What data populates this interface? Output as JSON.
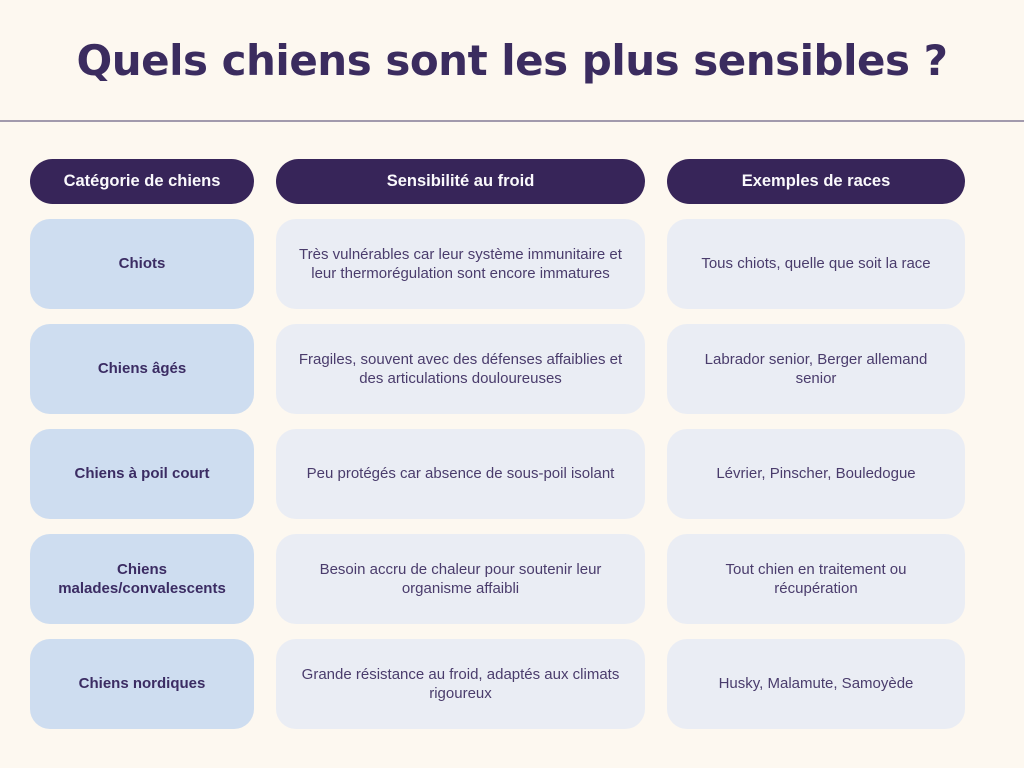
{
  "page": {
    "title": "Quels chiens sont les plus sensibles ?"
  },
  "table": {
    "headers": {
      "categorie": "Catégorie de chiens",
      "sensibilite": "Sensibilité au froid",
      "exemples": "Exemples de races"
    },
    "rows": [
      {
        "categorie": "Chiots",
        "sensibilite": "Très vulnérables car leur système immunitaire et leur thermorégulation sont encore immatures",
        "exemples": "Tous chiots, quelle que soit la race"
      },
      {
        "categorie": "Chiens âgés",
        "sensibilite": "Fragiles, souvent avec des défenses affaiblies et des articulations douloureuses",
        "exemples": "Labrador senior, Berger allemand senior"
      },
      {
        "categorie": "Chiens à poil court",
        "sensibilite": "Peu protégés car absence de sous-poil isolant",
        "exemples": "Lévrier, Pinscher, Bouledogue"
      },
      {
        "categorie": "Chiens malades/convalescents",
        "sensibilite": "Besoin accru de chaleur pour soutenir leur organisme affaibli",
        "exemples": "Tout chien en traitement ou récupération"
      },
      {
        "categorie": "Chiens nordiques",
        "sensibilite": "Grande résistance au froid, adaptés aux climats rigoureux",
        "exemples": "Husky, Malamute, Samoyède"
      }
    ]
  },
  "colors": {
    "background": "#FDF8F0",
    "header_pill": "#372559",
    "header_pill_text": "#FAF9FC",
    "category_cell": "#CEDDF0",
    "info_cell": "#EAEDF4",
    "title_text": "#3B2C5F",
    "category_text": "#3B2C63",
    "info_text": "#4A3C6C",
    "divider": "#A29AAD"
  }
}
